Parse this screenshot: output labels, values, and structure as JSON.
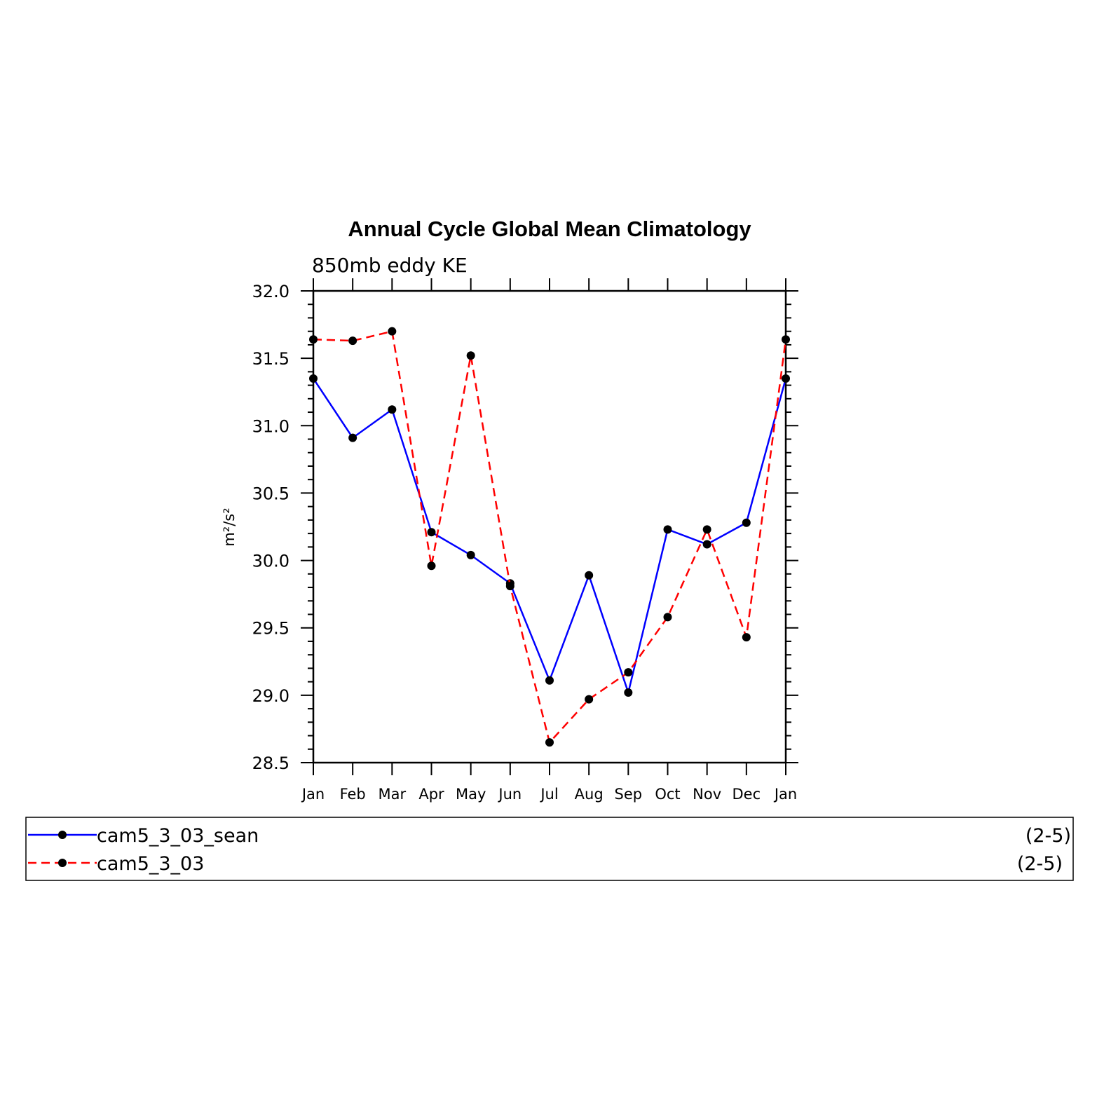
{
  "chart_data": {
    "type": "line",
    "title": "Annual Cycle Global Mean Climatology",
    "subtitle": "850mb eddy KE",
    "xlabel": "",
    "ylabel": "m²/s²",
    "categories": [
      "Jan",
      "Feb",
      "Mar",
      "Apr",
      "May",
      "Jun",
      "Jul",
      "Aug",
      "Sep",
      "Oct",
      "Nov",
      "Dec",
      "Jan"
    ],
    "ylim": [
      28.5,
      32.0
    ],
    "yticks": [
      "28.5",
      "29.0",
      "29.5",
      "30.0",
      "30.5",
      "31.0",
      "31.5",
      "32.0"
    ],
    "grid": false,
    "legend_position": "bottom",
    "series": [
      {
        "name": "cam5_3_03_sean",
        "suffix": "(2-5)",
        "color": "#0000ff",
        "dash": "solid",
        "values": [
          31.35,
          30.91,
          31.12,
          30.21,
          30.04,
          29.83,
          29.11,
          29.89,
          29.02,
          30.23,
          30.12,
          30.28,
          31.35
        ]
      },
      {
        "name": "cam5_3_03",
        "suffix": "(2-5)",
        "color": "#ff0000",
        "dash": "dashed",
        "values": [
          31.64,
          31.63,
          31.7,
          29.96,
          31.52,
          29.81,
          28.65,
          28.97,
          29.17,
          29.58,
          30.23,
          29.43,
          31.64
        ]
      }
    ]
  }
}
